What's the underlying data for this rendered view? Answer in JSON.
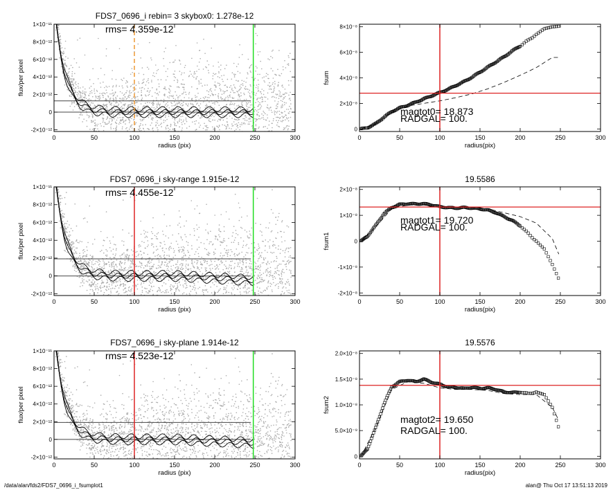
{
  "footer": {
    "path": "/data/alan/fds2/FDS7_0696_i_fsumplot1",
    "stamp": "alan@  Thu Oct 17 13:51:13 2019"
  },
  "colors": {
    "scatter": "#aaaaaa",
    "profile": "#000000",
    "red_line": "#dd2222",
    "green_line": "#22dd22",
    "orange_line": "#ee9933",
    "hline": "#444444"
  },
  "chart_data": [
    {
      "id": "panel-flux-1",
      "type": "scatter",
      "title": "FDS7_0696_i rebin= 3    skybox0:  1.278e-12",
      "annotation": "rms= 4.359e-12",
      "xlabel": "radius (pix)",
      "ylabel": "flux/per pixel",
      "xlim": [
        0,
        300
      ],
      "ylim": [
        -2.2e-12,
        1e-11
      ],
      "xticks": [
        0,
        50,
        100,
        150,
        200,
        250,
        300
      ],
      "yticks": [
        {
          "v": -2e-12,
          "l": "-2×10⁻¹²"
        },
        {
          "v": 0,
          "l": "0"
        },
        {
          "v": 2e-12,
          "l": "2×10⁻¹²"
        },
        {
          "v": 4e-12,
          "l": "4×10⁻¹²"
        },
        {
          "v": 6e-12,
          "l": "6×10⁻¹²"
        },
        {
          "v": 8e-12,
          "l": "8×10⁻¹²"
        },
        {
          "v": 1e-11,
          "l": "1×10⁻¹¹"
        }
      ],
      "vlines": [
        {
          "x": 100,
          "color": "orange",
          "dashed": true
        },
        {
          "x": 248,
          "color": "green",
          "dashed": false
        }
      ],
      "hlines": [
        1.278e-12,
        0
      ],
      "profile_tail": 0.0
    },
    {
      "id": "panel-fsum-0",
      "type": "line",
      "title": "",
      "annotation": "magtot0=  18.873",
      "annotation2": "RADGAL=    100.",
      "xlabel": "radius(pix)",
      "ylabel": "fsum",
      "xlim": [
        0,
        300
      ],
      "ylim": [
        -2e-09,
        8.2e-08
      ],
      "xticks": [
        0,
        50,
        100,
        150,
        200,
        250,
        300
      ],
      "yticks": [
        {
          "v": 0,
          "l": "0"
        },
        {
          "v": 2e-08,
          "l": "2×10⁻⁸"
        },
        {
          "v": 4e-08,
          "l": "4×10⁻⁸"
        },
        {
          "v": 6e-08,
          "l": "6×10⁻⁸"
        },
        {
          "v": 8e-08,
          "l": "8×10⁻⁸"
        }
      ],
      "vlines": [
        {
          "x": 100,
          "color": "red",
          "dashed": false
        }
      ],
      "hlines_red": [
        2.8e-08
      ],
      "squares": [
        [
          2,
          0.0
        ],
        [
          10,
          1e-09
        ],
        [
          20,
          4e-09
        ],
        [
          30,
          9e-09
        ],
        [
          40,
          1.35e-08
        ],
        [
          50,
          1.65e-08
        ],
        [
          60,
          1.85e-08
        ],
        [
          70,
          2.1e-08
        ],
        [
          80,
          2.35e-08
        ],
        [
          90,
          2.6e-08
        ],
        [
          100,
          2.85e-08
        ],
        [
          110,
          3.1e-08
        ],
        [
          120,
          3.4e-08
        ],
        [
          130,
          3.7e-08
        ],
        [
          140,
          4.05e-08
        ],
        [
          150,
          4.45e-08
        ],
        [
          160,
          4.85e-08
        ],
        [
          170,
          5.25e-08
        ],
        [
          180,
          5.65e-08
        ],
        [
          190,
          6.1e-08
        ],
        [
          200,
          6.5e-08
        ],
        [
          210,
          6.95e-08
        ],
        [
          220,
          7.4e-08
        ],
        [
          230,
          7.85e-08
        ],
        [
          240,
          8e-08
        ],
        [
          250,
          8.05e-08
        ]
      ],
      "dashed": [
        [
          2,
          0.0
        ],
        [
          20,
          4e-09
        ],
        [
          40,
          1.3e-08
        ],
        [
          60,
          1.8e-08
        ],
        [
          80,
          2e-08
        ],
        [
          100,
          2.2e-08
        ],
        [
          120,
          2.45e-08
        ],
        [
          140,
          2.75e-08
        ],
        [
          160,
          3.15e-08
        ],
        [
          180,
          3.65e-08
        ],
        [
          200,
          4.2e-08
        ],
        [
          220,
          4.8e-08
        ],
        [
          240,
          5.6e-08
        ],
        [
          248,
          5.6e-08
        ]
      ]
    },
    {
      "id": "panel-flux-2",
      "type": "scatter",
      "title": "FDS7_0696_i sky-range  1.915e-12",
      "annotation": "rms= 4.455e-12",
      "xlabel": "radius (pix)",
      "ylabel": "flux/per pixel",
      "xlim": [
        0,
        300
      ],
      "ylim": [
        -2.2e-12,
        1e-11
      ],
      "xticks": [
        0,
        50,
        100,
        150,
        200,
        250,
        300
      ],
      "yticks": [
        {
          "v": -2e-12,
          "l": "-2×10⁻¹²"
        },
        {
          "v": 0,
          "l": "0"
        },
        {
          "v": 2e-12,
          "l": "2×10⁻¹²"
        },
        {
          "v": 4e-12,
          "l": "4×10⁻¹²"
        },
        {
          "v": 6e-12,
          "l": "6×10⁻¹²"
        },
        {
          "v": 8e-12,
          "l": "8×10⁻¹²"
        },
        {
          "v": 1e-11,
          "l": "1×10⁻¹¹"
        }
      ],
      "vlines": [
        {
          "x": 100,
          "color": "red",
          "dashed": false
        },
        {
          "x": 248,
          "color": "green",
          "dashed": false
        }
      ],
      "hlines": [
        1.915e-12,
        0
      ],
      "profile_tail": -5e-13
    },
    {
      "id": "panel-fsum-1",
      "type": "line",
      "title": "19.5586",
      "annotation": "magtot1=  19.720",
      "annotation2": "RADGAL=    100.",
      "xlabel": "radius(pix)",
      "ylabel": "fsum1",
      "xlim": [
        0,
        300
      ],
      "ylim": [
        -2.1e-08,
        2.1e-08
      ],
      "xticks": [
        0,
        50,
        100,
        150,
        200,
        250,
        300
      ],
      "yticks": [
        {
          "v": -2e-08,
          "l": "-2×10⁻⁸"
        },
        {
          "v": -1e-08,
          "l": "-1×10⁻⁸"
        },
        {
          "v": 0,
          "l": "0"
        },
        {
          "v": 1e-08,
          "l": "1×10⁻⁸"
        },
        {
          "v": 2e-08,
          "l": "2×10⁻⁸"
        }
      ],
      "vlines": [
        {
          "x": 100,
          "color": "red",
          "dashed": false
        }
      ],
      "hlines_red": [
        1.32e-08
      ],
      "squares": [
        [
          2,
          0.0
        ],
        [
          10,
          2e-09
        ],
        [
          20,
          6e-09
        ],
        [
          30,
          1.05e-08
        ],
        [
          40,
          1.3e-08
        ],
        [
          50,
          1.42e-08
        ],
        [
          60,
          1.45e-08
        ],
        [
          70,
          1.44e-08
        ],
        [
          80,
          1.45e-08
        ],
        [
          90,
          1.4e-08
        ],
        [
          100,
          1.33e-08
        ],
        [
          110,
          1.3e-08
        ],
        [
          120,
          1.28e-08
        ],
        [
          130,
          1.3e-08
        ],
        [
          140,
          1.28e-08
        ],
        [
          150,
          1.25e-08
        ],
        [
          160,
          1.2e-08
        ],
        [
          170,
          1.1e-08
        ],
        [
          180,
          9.5e-09
        ],
        [
          190,
          8e-09
        ],
        [
          200,
          6e-09
        ],
        [
          210,
          3e-09
        ],
        [
          220,
          0.0
        ],
        [
          230,
          -3e-09
        ],
        [
          240,
          -9e-09
        ],
        [
          250,
          -1.6e-08
        ]
      ],
      "dashed": [
        [
          2,
          0.0
        ],
        [
          20,
          5.5e-09
        ],
        [
          40,
          1.25e-08
        ],
        [
          60,
          1.4e-08
        ],
        [
          80,
          1.4e-08
        ],
        [
          100,
          1.32e-08
        ],
        [
          120,
          1.3e-08
        ],
        [
          140,
          1.3e-08
        ],
        [
          160,
          1.25e-08
        ],
        [
          180,
          1.1e-08
        ],
        [
          200,
          9.5e-09
        ],
        [
          220,
          7e-09
        ],
        [
          240,
          1e-09
        ],
        [
          248,
          -5e-09
        ]
      ]
    },
    {
      "id": "panel-flux-3",
      "type": "scatter",
      "title": "FDS7_0696_i sky-plane  1.914e-12",
      "annotation": "rms= 4.523e-12",
      "xlabel": "radius (pix)",
      "ylabel": "flux/per pixel",
      "xlim": [
        0,
        300
      ],
      "ylim": [
        -2.2e-12,
        1e-11
      ],
      "xticks": [
        0,
        50,
        100,
        150,
        200,
        250,
        300
      ],
      "yticks": [
        {
          "v": -2e-12,
          "l": "-2×10⁻¹²"
        },
        {
          "v": 0,
          "l": "0"
        },
        {
          "v": 2e-12,
          "l": "2×10⁻¹²"
        },
        {
          "v": 4e-12,
          "l": "4×10⁻¹²"
        },
        {
          "v": 6e-12,
          "l": "6×10⁻¹²"
        },
        {
          "v": 8e-12,
          "l": "8×10⁻¹²"
        },
        {
          "v": 1e-11,
          "l": "1×10⁻¹¹"
        }
      ],
      "vlines": [
        {
          "x": 100,
          "color": "red",
          "dashed": false
        },
        {
          "x": 248,
          "color": "green",
          "dashed": false
        }
      ],
      "hlines": [
        1.914e-12,
        0
      ],
      "profile_tail": -4e-13
    },
    {
      "id": "panel-fsum-2",
      "type": "line",
      "title": "19.5576",
      "annotation": "magtot2=  19.650",
      "annotation2": "RADGAL=    100.",
      "xlabel": "radius(pix)",
      "ylabel": "fsum2",
      "xlim": [
        0,
        300
      ],
      "ylim": [
        -5e-10,
        2.05e-08
      ],
      "xticks": [
        0,
        50,
        100,
        150,
        200,
        250,
        300
      ],
      "yticks": [
        {
          "v": 0,
          "l": "0"
        },
        {
          "v": 5e-09,
          "l": "5.0×10⁻⁹"
        },
        {
          "v": 1e-08,
          "l": "1.0×10⁻⁸"
        },
        {
          "v": 1.5e-08,
          "l": "1.5×10⁻⁸"
        },
        {
          "v": 2e-08,
          "l": "2.0×10⁻⁸"
        }
      ],
      "vlines": [
        {
          "x": 100,
          "color": "red",
          "dashed": false
        }
      ],
      "hlines_red": [
        1.38e-08
      ],
      "squares": [
        [
          2,
          0.0
        ],
        [
          10,
          1.5e-09
        ],
        [
          20,
          5.5e-09
        ],
        [
          30,
          1e-08
        ],
        [
          40,
          1.35e-08
        ],
        [
          50,
          1.45e-08
        ],
        [
          60,
          1.48e-08
        ],
        [
          70,
          1.45e-08
        ],
        [
          80,
          1.5e-08
        ],
        [
          90,
          1.44e-08
        ],
        [
          100,
          1.4e-08
        ],
        [
          110,
          1.35e-08
        ],
        [
          120,
          1.34e-08
        ],
        [
          130,
          1.32e-08
        ],
        [
          140,
          1.34e-08
        ],
        [
          150,
          1.32e-08
        ],
        [
          160,
          1.33e-08
        ],
        [
          170,
          1.3e-08
        ],
        [
          180,
          1.25e-08
        ],
        [
          190,
          1.24e-08
        ],
        [
          200,
          1.25e-08
        ],
        [
          210,
          1.22e-08
        ],
        [
          220,
          1.25e-08
        ],
        [
          230,
          1.2e-08
        ],
        [
          240,
          9.5e-09
        ],
        [
          250,
          4.5e-09
        ]
      ],
      "dashed": [
        [
          2,
          0.0
        ],
        [
          20,
          5.5e-09
        ],
        [
          40,
          1.3e-08
        ],
        [
          60,
          1.45e-08
        ],
        [
          80,
          1.42e-08
        ],
        [
          100,
          1.33e-08
        ],
        [
          120,
          1.3e-08
        ],
        [
          140,
          1.3e-08
        ],
        [
          160,
          1.28e-08
        ],
        [
          180,
          1.22e-08
        ],
        [
          200,
          1.2e-08
        ],
        [
          220,
          1.2e-08
        ],
        [
          240,
          9.5e-09
        ],
        [
          248,
          7e-09
        ]
      ]
    }
  ]
}
